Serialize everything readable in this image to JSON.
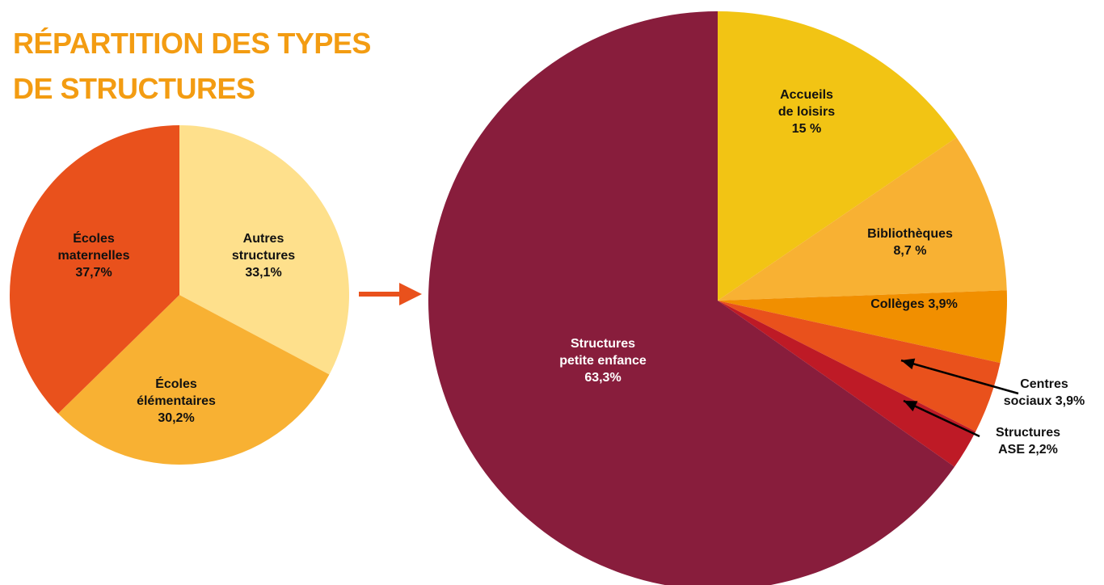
{
  "title_lines": [
    "RÉPARTITION  DES TYPES",
    "DE STRUCTURES"
  ],
  "colors": {
    "title": "#f39c12",
    "arrow": "#e9511c",
    "leader": "#000000"
  },
  "chart_data": [
    {
      "type": "pie",
      "slices": [
        {
          "key": "autres",
          "label_lines": [
            "Autres",
            "structures",
            "33,1%"
          ],
          "value": 33.1,
          "color": "#fee08c",
          "text_color": "#111111"
        },
        {
          "key": "elementaires",
          "label_lines": [
            "Écoles",
            "élémentaires",
            "30,2%"
          ],
          "value": 30.2,
          "color": "#f8b133",
          "text_color": "#111111"
        },
        {
          "key": "maternelles",
          "label_lines": [
            "Écoles",
            "maternelles",
            "37,7%"
          ],
          "value": 37.7,
          "color": "#e9511c",
          "text_color": "#111111"
        }
      ]
    },
    {
      "type": "pie",
      "slices": [
        {
          "key": "loisirs",
          "label_lines": [
            "Accueils",
            "de loisirs",
            "15 %"
          ],
          "value": 15,
          "color": "#f2c414",
          "text_color": "#111111"
        },
        {
          "key": "bibliotheques",
          "label_lines": [
            "Bibliothèques",
            "8,7 %"
          ],
          "value": 8.7,
          "color": "#f8b133",
          "text_color": "#111111"
        },
        {
          "key": "colleges",
          "label_lines": [
            "Collèges 3,9%"
          ],
          "value": 3.9,
          "color": "#f18f00",
          "text_color": "#111111"
        },
        {
          "key": "centres",
          "label_lines": [
            "Centres",
            "sociaux 3,9%"
          ],
          "value": 3.9,
          "color": "#e9511c",
          "text_color": "#111111"
        },
        {
          "key": "ase",
          "label_lines": [
            "Structures",
            "ASE 2,2%"
          ],
          "value": 2.2,
          "color": "#be1a26",
          "text_color": "#111111"
        },
        {
          "key": "petite",
          "label_lines": [
            "Structures",
            "petite enfance",
            "63,3%"
          ],
          "value": 63.3,
          "color": "#881d3c",
          "text_color": "#ffffff"
        }
      ]
    }
  ]
}
